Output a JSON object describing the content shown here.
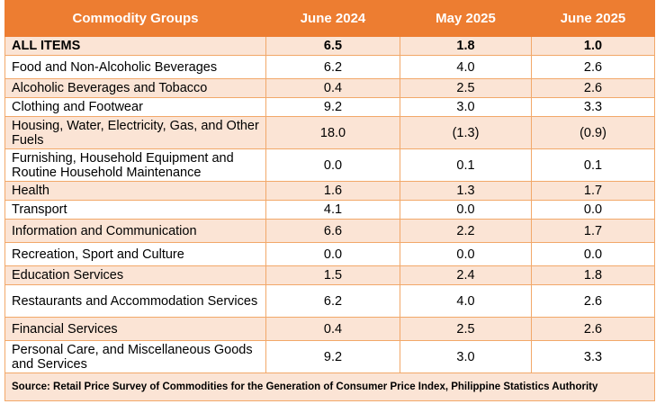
{
  "table": {
    "headers": [
      "Commodity Groups",
      "June 2024",
      "May 2025",
      "June 2025"
    ],
    "rows": [
      {
        "group": "ALL ITEMS",
        "jun2024": "6.5",
        "may2025": "1.8",
        "jun2025": "1.0"
      },
      {
        "group": "Food and Non-Alcoholic Beverages",
        "jun2024": "6.2",
        "may2025": "4.0",
        "jun2025": "2.6"
      },
      {
        "group": "Alcoholic Beverages and Tobacco",
        "jun2024": "0.4",
        "may2025": "2.5",
        "jun2025": "2.6"
      },
      {
        "group": "Clothing and Footwear",
        "jun2024": "9.2",
        "may2025": "3.0",
        "jun2025": "3.3"
      },
      {
        "group": "Housing, Water, Electricity, Gas, and Other Fuels",
        "jun2024": "18.0",
        "may2025": "(1.3)",
        "jun2025": "(0.9)"
      },
      {
        "group": "Furnishing, Household Equipment and Routine Household Maintenance",
        "jun2024": "0.0",
        "may2025": "0.1",
        "jun2025": "0.1"
      },
      {
        "group": "Health",
        "jun2024": "1.6",
        "may2025": "1.3",
        "jun2025": "1.7"
      },
      {
        "group": "Transport",
        "jun2024": "4.1",
        "may2025": "0.0",
        "jun2025": "0.0"
      },
      {
        "group": "Information and Communication",
        "jun2024": "6.6",
        "may2025": "2.2",
        "jun2025": "1.7"
      },
      {
        "group": "Recreation, Sport and Culture",
        "jun2024": "0.0",
        "may2025": "0.0",
        "jun2025": "0.0"
      },
      {
        "group": "Education Services",
        "jun2024": "1.5",
        "may2025": "2.4",
        "jun2025": "1.8"
      },
      {
        "group": "Restaurants and Accommodation Services",
        "jun2024": "6.2",
        "may2025": "4.0",
        "jun2025": "2.6"
      },
      {
        "group": "Financial Services",
        "jun2024": "0.4",
        "may2025": "2.5",
        "jun2025": "2.6"
      },
      {
        "group": "Personal Care, and Miscellaneous Goods and Services",
        "jun2024": "9.2",
        "may2025": "3.0",
        "jun2025": "3.3"
      }
    ],
    "source": "Source: Retail Price Survey of Commodities for the Generation of Consumer Price Index, Philippine Statistics Authority"
  },
  "colors": {
    "header_bg": "#ed7d31",
    "header_text": "#ffffff",
    "band_bg": "#fbe4d5",
    "border": "#f2a869"
  }
}
